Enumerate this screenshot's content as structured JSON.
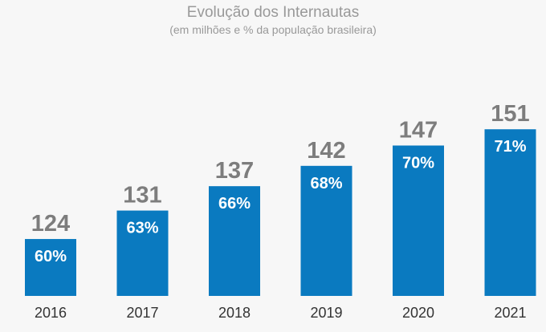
{
  "chart_data": {
    "type": "bar",
    "title": "Evolução dos Internautas",
    "subtitle": "(em milhões e % da população brasileira)",
    "categories": [
      "2016",
      "2017",
      "2018",
      "2019",
      "2020",
      "2021"
    ],
    "values": [
      124,
      131,
      137,
      142,
      147,
      151
    ],
    "value_labels": [
      "124",
      "131",
      "137",
      "142",
      "147",
      "151"
    ],
    "percent_labels": [
      "60%",
      "63%",
      "66%",
      "68%",
      "70%",
      "71%"
    ],
    "ylim": [
      110,
      154
    ],
    "grid": false,
    "legend": "none",
    "bar_color": "#0a7ac0"
  }
}
